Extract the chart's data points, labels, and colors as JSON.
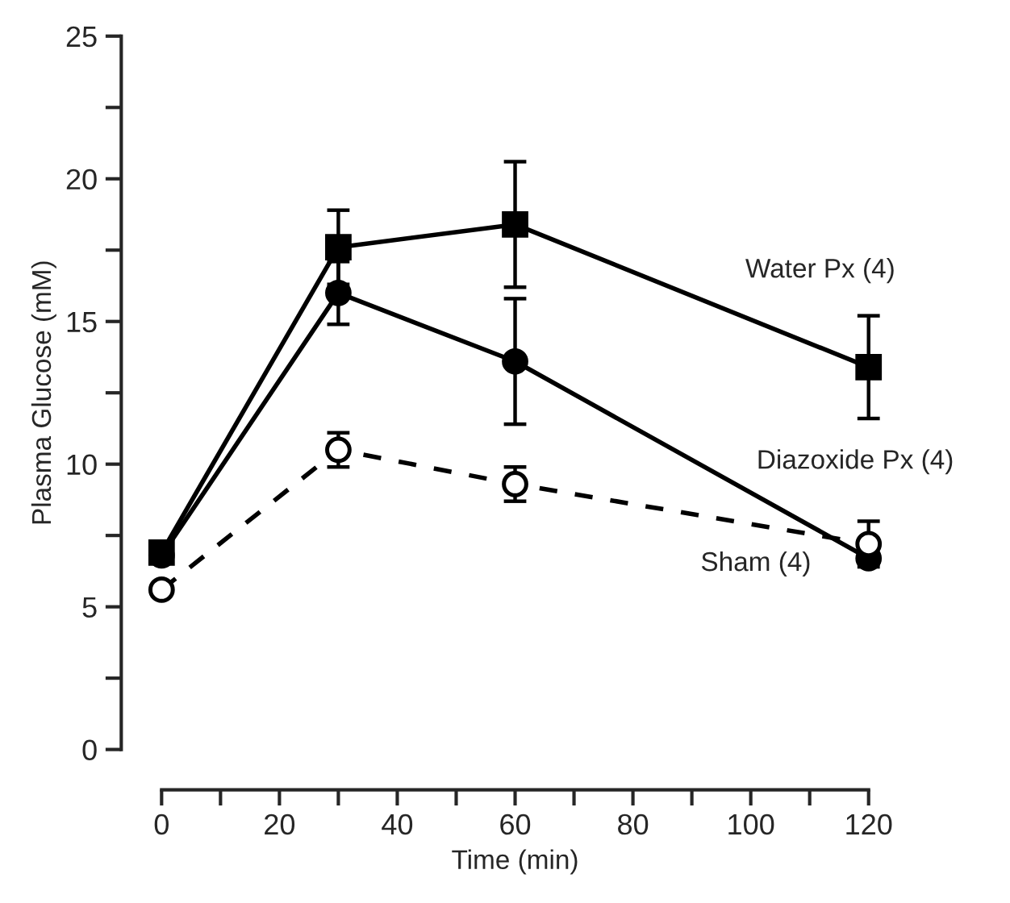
{
  "chart_data": {
    "type": "line",
    "xlabel": "Time (min)",
    "ylabel": "Plasma Glucose (mM)",
    "x": [
      0,
      30,
      60,
      120
    ],
    "xlim": [
      0,
      120
    ],
    "ylim": [
      0,
      25
    ],
    "xticks": [
      0,
      20,
      40,
      60,
      80,
      100,
      120
    ],
    "yticks": [
      0,
      5,
      10,
      15,
      20,
      25
    ],
    "grid": false,
    "legend": false,
    "series": [
      {
        "name": "Water Px (4)",
        "color": "#000000",
        "marker": "square",
        "line_style": "solid",
        "values": [
          6.9,
          17.6,
          18.4,
          13.4
        ],
        "errors": [
          null,
          1.3,
          2.2,
          1.8
        ]
      },
      {
        "name": "Diazoxide Px (4)",
        "color": "#000000",
        "marker": "circle",
        "line_style": "solid",
        "values": [
          6.8,
          16.0,
          13.6,
          6.7
        ],
        "errors": [
          null,
          1.1,
          2.2,
          null
        ]
      },
      {
        "name": "Sham (4)",
        "color": "#000000",
        "marker": "circle",
        "line_style": "dashed",
        "values": [
          5.6,
          10.5,
          9.3,
          7.2
        ],
        "errors": [
          null,
          0.6,
          0.6,
          0.8
        ]
      }
    ]
  }
}
